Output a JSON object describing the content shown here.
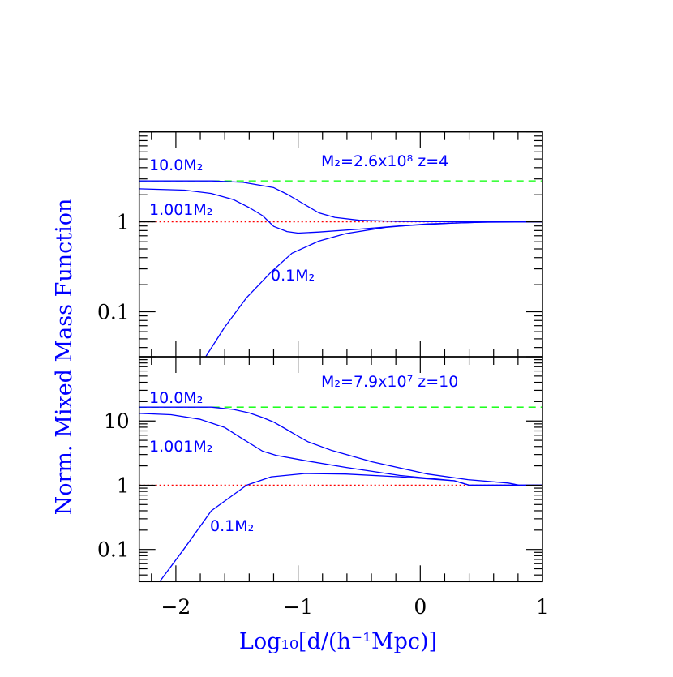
{
  "chart_data": [
    {
      "type": "line",
      "panel": "top",
      "annotation": "M₂=2.6x10⁸ z=4",
      "xlim": [
        -2.3,
        1
      ],
      "ylim": [
        0.0316,
        10
      ],
      "yscale": "log",
      "xticks": [
        -2,
        -1,
        0,
        1
      ],
      "yticks": [
        {
          "v": 1,
          "label": "1"
        },
        {
          "v": 0.1,
          "label": "0.1"
        }
      ],
      "reference_lines": [
        {
          "y": 2.85,
          "color": "#00ff00",
          "style": "dashed"
        },
        {
          "y": 1,
          "color": "#ff0000",
          "style": "dotted"
        }
      ],
      "series": [
        {
          "name": "10.0M₂",
          "color": "#0000ff",
          "points": [
            [
              -2.3,
              2.85
            ],
            [
              -1.7,
              2.85
            ],
            [
              -1.45,
              2.75
            ],
            [
              -1.2,
              2.4
            ],
            [
              -1.09,
              2.03
            ],
            [
              -0.96,
              1.6
            ],
            [
              -0.83,
              1.26
            ],
            [
              -0.7,
              1.12
            ],
            [
              -0.5,
              1.04
            ],
            [
              -0.17,
              1.01
            ],
            [
              0.5,
              1.0
            ],
            [
              1,
              1
            ]
          ]
        },
        {
          "name": "1.001M₂",
          "color": "#0000ff",
          "points": [
            [
              -2.3,
              2.33
            ],
            [
              -1.93,
              2.25
            ],
            [
              -1.71,
              2.07
            ],
            [
              -1.53,
              1.77
            ],
            [
              -1.4,
              1.44
            ],
            [
              -1.29,
              1.17
            ],
            [
              -1.2,
              0.89
            ],
            [
              -1.09,
              0.78
            ],
            [
              -1.0,
              0.75
            ],
            [
              -0.83,
              0.77
            ],
            [
              -0.5,
              0.83
            ],
            [
              -0.17,
              0.9
            ],
            [
              0.28,
              0.97
            ],
            [
              0.61,
              1.0
            ],
            [
              1,
              1
            ]
          ]
        },
        {
          "name": "0.1M₂",
          "color": "#0000ff",
          "points": [
            [
              -1.755,
              0.0317
            ],
            [
              -1.6,
              0.0676
            ],
            [
              -1.42,
              0.144
            ],
            [
              -1.22,
              0.277
            ],
            [
              -1.05,
              0.448
            ],
            [
              -0.83,
              0.61
            ],
            [
              -0.61,
              0.74
            ],
            [
              -0.28,
              0.87
            ],
            [
              0.06,
              0.95
            ],
            [
              0.5,
              0.99
            ],
            [
              1,
              1
            ]
          ]
        }
      ]
    },
    {
      "type": "line",
      "panel": "bottom",
      "annotation": "M₂=7.9x10⁷ z=10",
      "xlim": [
        -2.3,
        1
      ],
      "ylim": [
        0.0316,
        100
      ],
      "yscale": "log",
      "xticks": [
        -2,
        -1,
        0,
        1
      ],
      "xtick_labels": [
        "−2",
        "−1",
        "0",
        "1"
      ],
      "yticks": [
        {
          "v": 10,
          "label": "10"
        },
        {
          "v": 1,
          "label": "1"
        },
        {
          "v": 0.1,
          "label": "0.1"
        }
      ],
      "reference_lines": [
        {
          "y": 16.4,
          "color": "#00ff00",
          "style": "dashed"
        },
        {
          "y": 1,
          "color": "#ff0000",
          "style": "dotted"
        }
      ],
      "series": [
        {
          "name": "10.0M₂",
          "color": "#0000ff",
          "points": [
            [
              -2.3,
              16.4
            ],
            [
              -1.71,
              16.4
            ],
            [
              -1.53,
              15.1
            ],
            [
              -1.4,
              13.4
            ],
            [
              -1.29,
              11.3
            ],
            [
              -1.2,
              9.6
            ],
            [
              -1.09,
              7.3
            ],
            [
              -1.0,
              5.8
            ],
            [
              -0.92,
              4.75
            ],
            [
              -0.72,
              3.45
            ],
            [
              -0.39,
              2.3
            ],
            [
              0.06,
              1.49
            ],
            [
              0.39,
              1.22
            ],
            [
              0.72,
              1.08
            ],
            [
              0.81,
              1.0
            ],
            [
              1,
              1
            ]
          ]
        },
        {
          "name": "1.001M₂",
          "color": "#0000ff",
          "points": [
            [
              -2.3,
              13.1
            ],
            [
              -2.04,
              12.5
            ],
            [
              -1.8,
              10.6
            ],
            [
              -1.6,
              7.9
            ],
            [
              -1.45,
              5.2
            ],
            [
              -1.29,
              3.38
            ],
            [
              -1.18,
              2.92
            ],
            [
              -0.94,
              2.41
            ],
            [
              -0.61,
              1.89
            ],
            [
              -0.17,
              1.42
            ],
            [
              0.28,
              1.17
            ],
            [
              0.34,
              1.08
            ],
            [
              0.4,
              1.0
            ],
            [
              1,
              1
            ]
          ]
        },
        {
          "name": "0.1M₂",
          "color": "#0000ff",
          "points": [
            [
              -2.13,
              0.032
            ],
            [
              -1.93,
              0.104
            ],
            [
              -1.71,
              0.4
            ],
            [
              -1.42,
              1.0
            ],
            [
              -1.22,
              1.35
            ],
            [
              -0.94,
              1.52
            ],
            [
              -0.61,
              1.49
            ],
            [
              -0.17,
              1.35
            ],
            [
              0.28,
              1.17
            ],
            [
              0.4,
              1.0
            ],
            [
              1,
              1
            ]
          ]
        }
      ]
    }
  ],
  "xlabel": "Log₁₀[d/(h⁻¹Mpc)]",
  "ylabel": "Norm. Mixed Mass Function"
}
